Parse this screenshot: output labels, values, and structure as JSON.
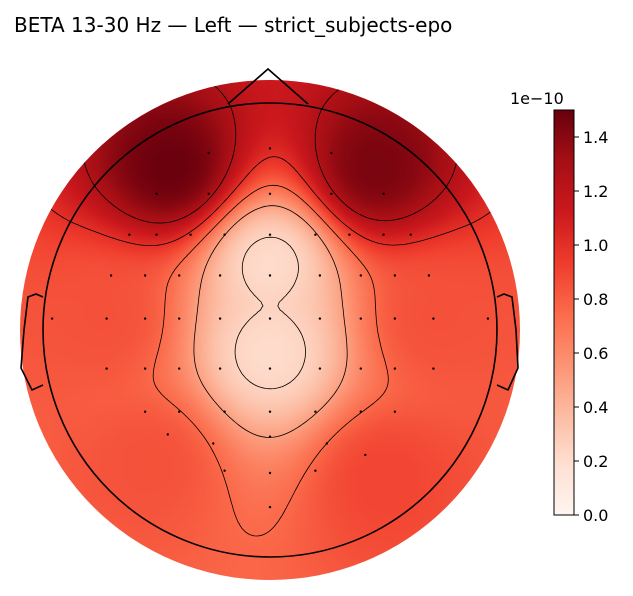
{
  "chart_data": {
    "type": "heatmap",
    "subtype": "eeg-topomap",
    "title": "BETA 13-30 Hz — Left — strict_subjects-epo",
    "colormap": "Reds",
    "colormap_stops": [
      "#fff5f0",
      "#fee0d2",
      "#fcbba1",
      "#fc9272",
      "#fb6a4a",
      "#ef3b2c",
      "#cb181d",
      "#a50f15",
      "#67000d"
    ],
    "colorbar": {
      "min": 0.0,
      "max": 1.5,
      "scale_offset": "1e−10",
      "ticks": [
        0.0,
        0.2,
        0.4,
        0.6,
        0.8,
        1.0,
        1.2,
        1.4
      ],
      "tick_labels": [
        "0.0",
        "0.2",
        "0.4",
        "0.6",
        "0.8",
        "1.0",
        "1.2",
        "1.4"
      ]
    },
    "hotspots": [
      {
        "x": -0.43,
        "y": 0.71,
        "value": 1.5
      },
      {
        "x": 0.46,
        "y": 0.71,
        "value": 1.45
      },
      {
        "x": -0.72,
        "y": 0.05,
        "value": 0.85
      },
      {
        "x": 0.72,
        "y": 0.05,
        "value": 0.85
      },
      {
        "x": -0.52,
        "y": -0.58,
        "value": 0.85
      },
      {
        "x": 0.5,
        "y": -0.65,
        "value": 0.9
      },
      {
        "x": 0.0,
        "y": 0.3,
        "value": 0.2
      },
      {
        "x": 0.0,
        "y": -0.1,
        "value": 0.2
      }
    ],
    "contour_levels": [
      0.25,
      0.5,
      0.75,
      1.0,
      1.25
    ],
    "sensors": [
      [
        -0.27,
        0.78
      ],
      [
        0.0,
        0.8
      ],
      [
        0.27,
        0.78
      ],
      [
        -0.5,
        0.6
      ],
      [
        -0.27,
        0.6
      ],
      [
        0.0,
        0.6
      ],
      [
        0.27,
        0.6
      ],
      [
        0.5,
        0.6
      ],
      [
        -0.62,
        0.42
      ],
      [
        -0.5,
        0.42
      ],
      [
        -0.35,
        0.42
      ],
      [
        -0.2,
        0.42
      ],
      [
        0.0,
        0.42
      ],
      [
        0.2,
        0.42
      ],
      [
        0.35,
        0.42
      ],
      [
        0.5,
        0.42
      ],
      [
        0.62,
        0.42
      ],
      [
        -0.7,
        0.24
      ],
      [
        -0.55,
        0.24
      ],
      [
        -0.4,
        0.24
      ],
      [
        -0.22,
        0.24
      ],
      [
        0.0,
        0.24
      ],
      [
        0.22,
        0.24
      ],
      [
        0.4,
        0.24
      ],
      [
        0.55,
        0.24
      ],
      [
        0.7,
        0.24
      ],
      [
        -0.96,
        0.05
      ],
      [
        -0.72,
        0.05
      ],
      [
        -0.55,
        0.05
      ],
      [
        -0.4,
        0.05
      ],
      [
        -0.22,
        0.05
      ],
      [
        0.0,
        0.05
      ],
      [
        0.22,
        0.05
      ],
      [
        0.4,
        0.05
      ],
      [
        0.55,
        0.05
      ],
      [
        0.72,
        0.05
      ],
      [
        0.96,
        0.05
      ],
      [
        -0.72,
        -0.17
      ],
      [
        -0.55,
        -0.17
      ],
      [
        -0.4,
        -0.17
      ],
      [
        -0.22,
        -0.17
      ],
      [
        0.0,
        -0.17
      ],
      [
        0.22,
        -0.17
      ],
      [
        0.4,
        -0.17
      ],
      [
        0.55,
        -0.17
      ],
      [
        0.72,
        -0.17
      ],
      [
        -0.55,
        -0.36
      ],
      [
        -0.4,
        -0.36
      ],
      [
        -0.2,
        -0.36
      ],
      [
        0.0,
        -0.36
      ],
      [
        0.2,
        -0.36
      ],
      [
        0.4,
        -0.36
      ],
      [
        0.55,
        -0.36
      ],
      [
        -0.45,
        -0.46
      ],
      [
        -0.25,
        -0.5
      ],
      [
        0.0,
        -0.47
      ],
      [
        0.25,
        -0.5
      ],
      [
        0.42,
        -0.55
      ],
      [
        -0.2,
        -0.62
      ],
      [
        0.0,
        -0.63
      ],
      [
        0.2,
        -0.62
      ],
      [
        0.0,
        -0.78
      ]
    ]
  }
}
